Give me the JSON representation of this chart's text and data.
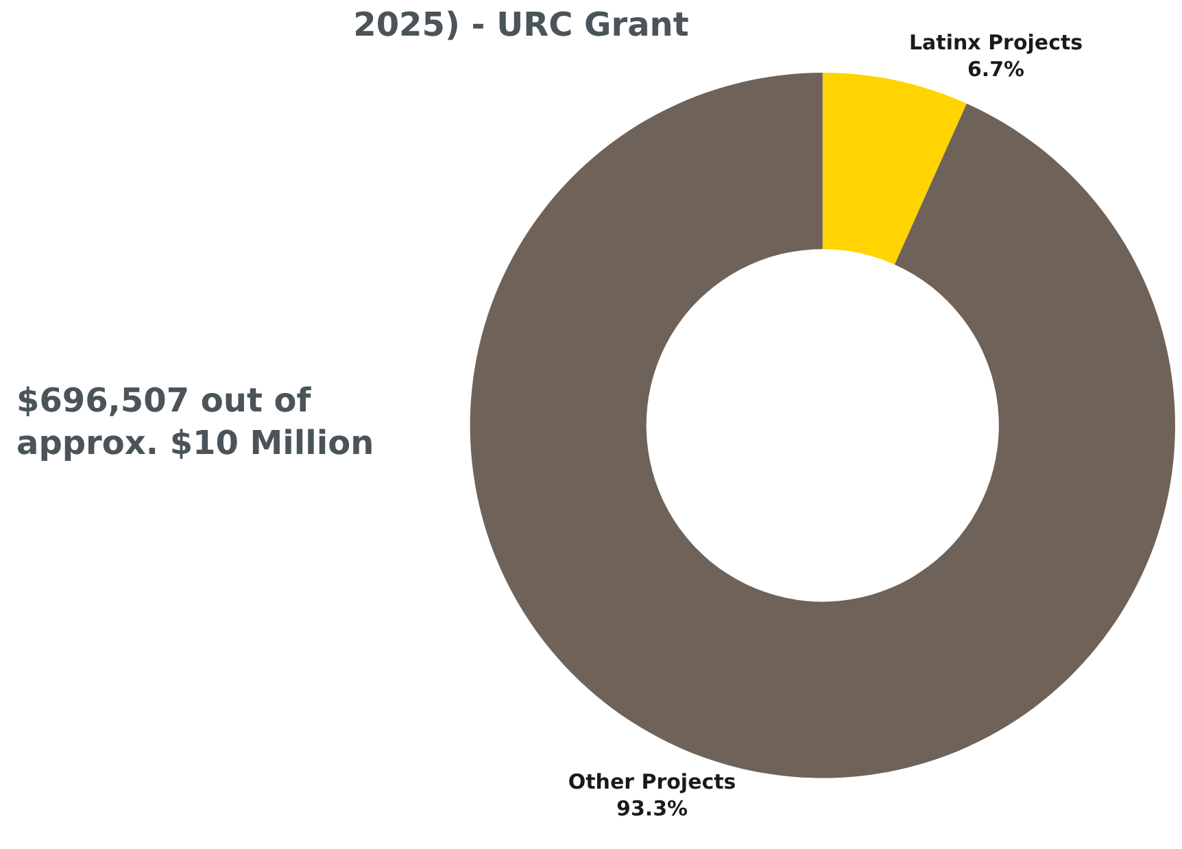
{
  "chart_data": {
    "type": "donut",
    "title": "2025) - URC Grant",
    "categories": [
      "Latinx Projects",
      "Other Projects"
    ],
    "values": [
      6.7,
      93.3
    ],
    "colors": [
      "#ffd400",
      "#6f6258"
    ],
    "value_labels": [
      "6.7%",
      "93.3%"
    ],
    "annotations": [
      "$696,507 out of\napprox. $10 Million"
    ],
    "legend": false
  }
}
